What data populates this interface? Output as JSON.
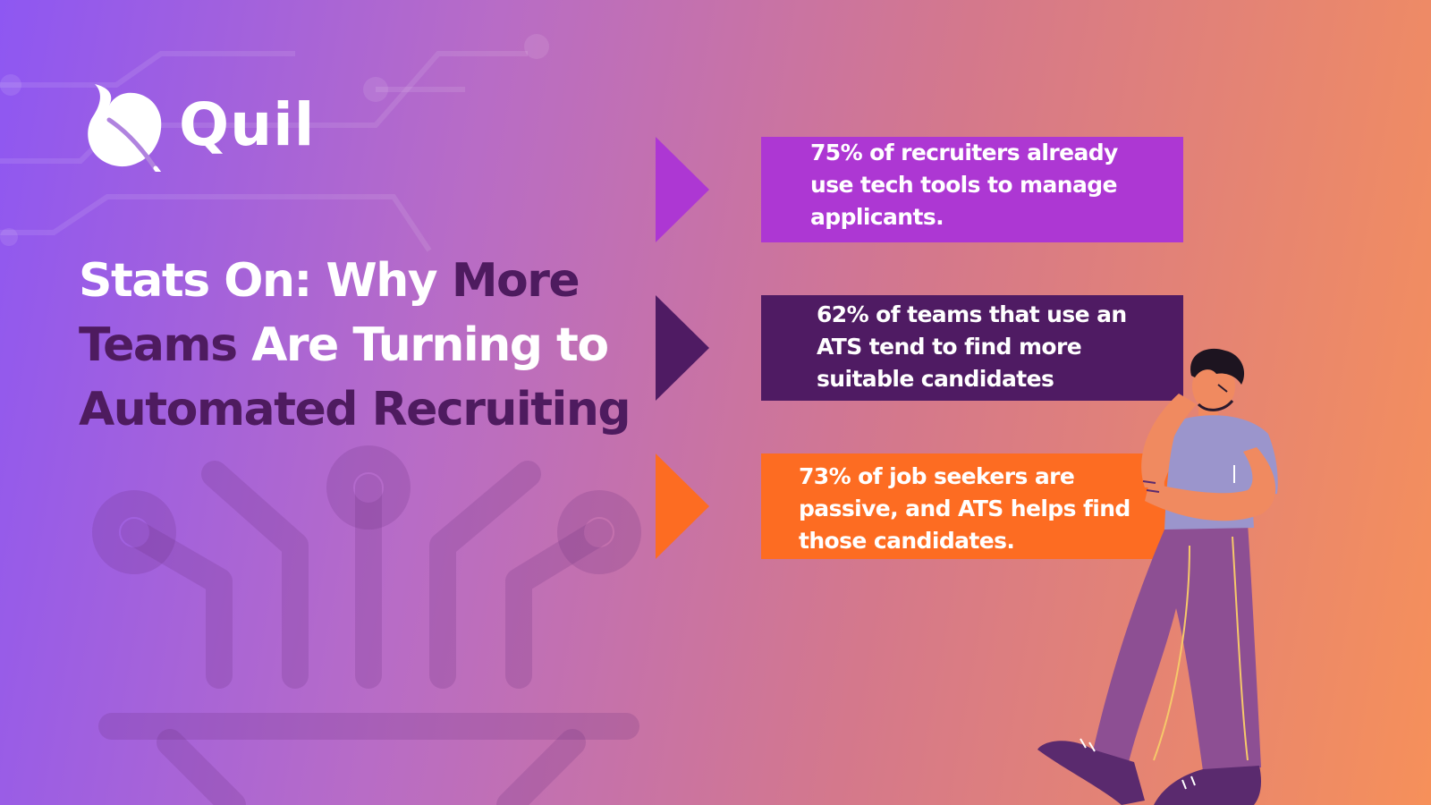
{
  "brand": {
    "name": "Quil",
    "logo_icon": "leaf-icon"
  },
  "headline": {
    "lines": [
      [
        {
          "text": "Stats On: Why ",
          "tone": "light"
        },
        {
          "text": "More",
          "tone": "dark"
        }
      ],
      [
        {
          "text": "Teams ",
          "tone": "dark"
        },
        {
          "text": "Are Turning to",
          "tone": "light"
        }
      ],
      [
        {
          "text": "Automated Recruiting",
          "tone": "dark"
        }
      ]
    ]
  },
  "stats": [
    {
      "text": "75% of recruiters already\nuse tech tools to manage\napplicants.",
      "color": "#ad37d3"
    },
    {
      "text": "62% of teams that use an\nATS tend to find more\nsuitable candidates",
      "color": "#4f1b63"
    },
    {
      "text": "73% of job seekers are\npassive, and ATS helps find\nthose candidates.",
      "color": "#fd6c22"
    }
  ],
  "colors": {
    "headline_light": "#ffffff",
    "headline_dark": "#4e1b5f"
  },
  "illustration": "thinking-person-illustration"
}
